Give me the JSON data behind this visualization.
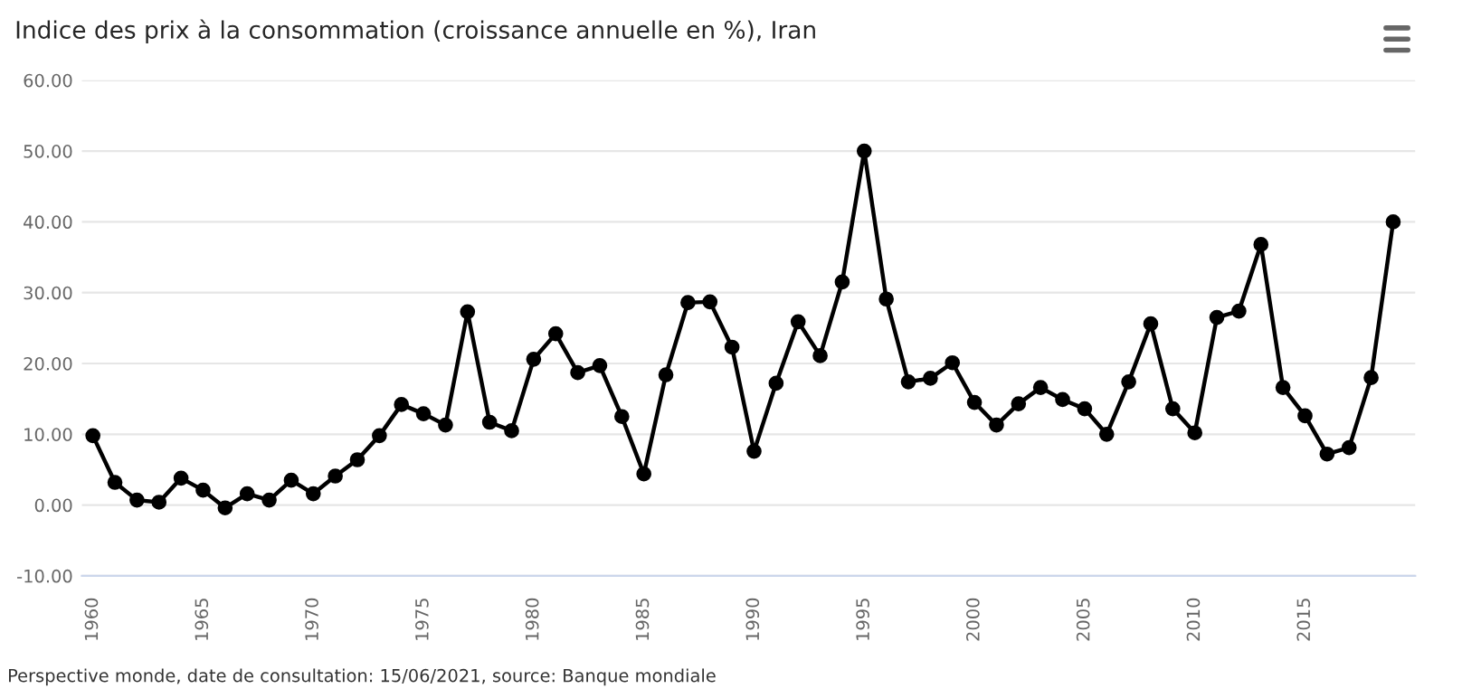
{
  "chart_data": {
    "type": "line",
    "title": "Indice des prix à la consommation (croissance annuelle en %), Iran",
    "annotations": [
      "Perspective monde, date de consultation: 15/06/2021, source: Banque mondiale"
    ],
    "x": [
      1960,
      1961,
      1962,
      1963,
      1964,
      1965,
      1966,
      1967,
      1968,
      1969,
      1970,
      1971,
      1972,
      1973,
      1974,
      1975,
      1976,
      1977,
      1978,
      1979,
      1980,
      1981,
      1982,
      1983,
      1984,
      1985,
      1986,
      1987,
      1988,
      1989,
      1990,
      1991,
      1992,
      1993,
      1994,
      1995,
      1996,
      1997,
      1998,
      1999,
      2000,
      2001,
      2002,
      2003,
      2004,
      2005,
      2006,
      2007,
      2008,
      2009,
      2010,
      2011,
      2012,
      2013,
      2014,
      2015,
      2016,
      2017,
      2018,
      2019
    ],
    "series": [
      {
        "color": "#000000",
        "values": [
          9.8,
          3.2,
          0.7,
          0.4,
          3.8,
          2.1,
          -0.4,
          1.6,
          0.7,
          3.5,
          1.6,
          4.1,
          6.4,
          9.8,
          14.2,
          12.9,
          11.3,
          27.3,
          11.7,
          10.5,
          20.6,
          24.2,
          18.7,
          19.7,
          12.5,
          4.4,
          18.4,
          28.6,
          28.7,
          22.3,
          7.6,
          17.2,
          25.9,
          21.1,
          31.5,
          50.0,
          29.1,
          17.4,
          17.9,
          20.1,
          14.5,
          11.3,
          14.3,
          16.6,
          14.9,
          13.6,
          10.0,
          17.4,
          25.6,
          13.6,
          10.2,
          26.5,
          27.4,
          36.8,
          16.6,
          12.6,
          7.2,
          8.1,
          18.0,
          40.0
        ]
      }
    ],
    "xlim": [
      1959.5,
      2020
    ],
    "xticks": [
      1960,
      1965,
      1970,
      1975,
      1980,
      1985,
      1990,
      1995,
      2000,
      2005,
      2010,
      2015
    ],
    "ylim": [
      -10,
      60
    ],
    "yticks": [
      {
        "value": -10,
        "label": "-10.00"
      },
      {
        "value": 0,
        "label": "0.00"
      },
      {
        "value": 10,
        "label": "10.00"
      },
      {
        "value": 20,
        "label": "20.00"
      },
      {
        "value": 30,
        "label": "30.00"
      },
      {
        "value": 40,
        "label": "40.00"
      },
      {
        "value": 50,
        "label": "50.00"
      },
      {
        "value": 60,
        "label": "60.00"
      }
    ],
    "grid": "y",
    "marker": "circle",
    "line_style": "solid",
    "legend": false
  }
}
